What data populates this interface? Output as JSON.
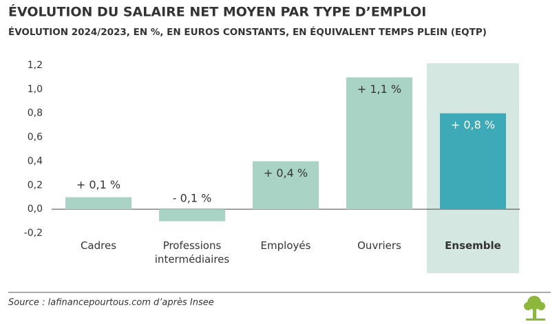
{
  "chart_data": {
    "type": "bar",
    "title": "ÉVOLUTION DU SALAIRE NET MOYEN PAR TYPE D’EMPLOI",
    "subtitle": "ÉVOLUTION 2024/2023, EN %, EN EUROS CONSTANTS, EN ÉQUIVALENT TEMPS PLEIN (EQTP)",
    "categories": [
      "Cadres",
      "Professions intermédiaires",
      "Employés",
      "Ouvriers",
      "Ensemble"
    ],
    "values": [
      0.1,
      -0.1,
      0.4,
      1.1,
      0.8
    ],
    "value_labels": [
      "+ 0,1 %",
      "- 0,1 %",
      "+ 0,4 %",
      "+ 1,1 %",
      "+ 0,8 %"
    ],
    "colors": [
      "#a9d3c5",
      "#a9d3c5",
      "#a9d3c5",
      "#a9d3c5",
      "#3eaab8"
    ],
    "highlighted": [
      false,
      false,
      false,
      false,
      true
    ],
    "highlight_color": "#d4e7e0",
    "ylim": [
      -0.2,
      1.2
    ],
    "yticks": [
      {
        "value": -0.2,
        "label": "-0,2"
      },
      {
        "value": 0,
        "label": "0,0"
      },
      {
        "value": 0.2,
        "label": "0,2"
      },
      {
        "value": 0.4,
        "label": "0,4"
      },
      {
        "value": 0.6,
        "label": "0,6"
      },
      {
        "value": 0.8,
        "label": "0,8"
      },
      {
        "value": 1,
        "label": "1,0"
      },
      {
        "value": 1.2,
        "label": "1,2"
      }
    ],
    "source": "Source : lafinancepourtous.com d’après Insee"
  }
}
